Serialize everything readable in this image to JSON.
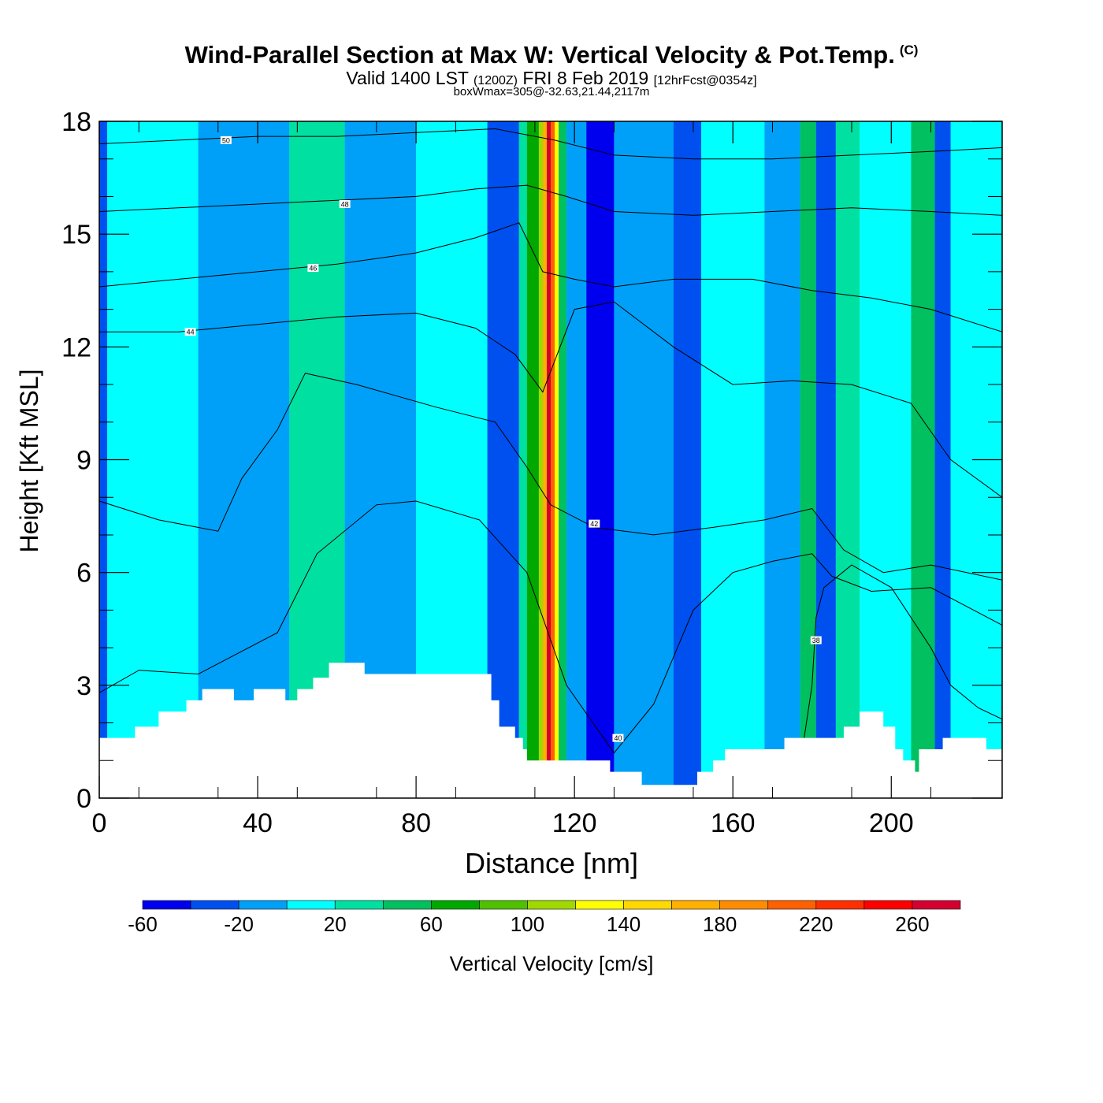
{
  "header": {
    "title": "Wind-Parallel Section at Max W: Vertical Velocity & Pot.Temp.",
    "copyright": "(C)",
    "valid_prefix": "Valid 1400 LST",
    "valid_z": "(1200Z)",
    "valid_date": "FRI 8 Feb 2019",
    "valid_fcst": "[12hrFcst@0354z]",
    "boxwmax": "boxWmax=305@-32.63,21.44,2117m"
  },
  "chart_data": {
    "type": "heatmap",
    "title": "Wind-Parallel Section at Max W: Vertical Velocity & Pot.Temp.",
    "xlabel": "Distance [nm]",
    "ylabel": "Height [Kft MSL]",
    "xlim": [
      0,
      228
    ],
    "ylim": [
      0,
      18
    ],
    "x_ticks": [
      "0",
      "40",
      "80",
      "120",
      "160",
      "200"
    ],
    "y_ticks": [
      "0",
      "3",
      "6",
      "9",
      "12",
      "15",
      "18"
    ],
    "colorbar": {
      "label": "Vertical Velocity [cm/s]",
      "levels": [
        -60,
        -40,
        -20,
        0,
        20,
        40,
        60,
        80,
        100,
        120,
        140,
        160,
        180,
        200,
        220,
        240,
        260,
        280
      ],
      "tick_labels": [
        "-60",
        "-20",
        "20",
        "60",
        "100",
        "140",
        "180",
        "220",
        "260"
      ],
      "colors": [
        "#0000ee",
        "#0050f0",
        "#00a0f8",
        "#00ffff",
        "#00e0a0",
        "#00c060",
        "#00a800",
        "#50c000",
        "#a0d800",
        "#ffff00",
        "#ffd800",
        "#ffb000",
        "#ff8c00",
        "#ff6000",
        "#ff3000",
        "#ff0000",
        "#d40030"
      ]
    },
    "velocity_columns": [
      {
        "x": [
          0,
          2
        ],
        "v": -30
      },
      {
        "x": [
          2,
          25
        ],
        "v": 10
      },
      {
        "x": [
          25,
          48
        ],
        "v": -10
      },
      {
        "x": [
          48,
          62
        ],
        "v": 20
      },
      {
        "x": [
          62,
          80
        ],
        "v": -10
      },
      {
        "x": [
          80,
          98
        ],
        "v": 10
      },
      {
        "x": [
          98,
          106
        ],
        "v": -30
      },
      {
        "x": [
          106,
          108
        ],
        "v": 20
      },
      {
        "x": [
          108,
          111
        ],
        "v": 60
      },
      {
        "x": [
          111,
          112
        ],
        "v": 100
      },
      {
        "x": [
          112,
          113
        ],
        "v": 160
      },
      {
        "x": [
          113,
          114
        ],
        "v": 260
      },
      {
        "x": [
          114,
          115
        ],
        "v": 200
      },
      {
        "x": [
          115,
          116
        ],
        "v": 120
      },
      {
        "x": [
          116,
          118
        ],
        "v": 40
      },
      {
        "x": [
          118,
          123
        ],
        "v": -20
      },
      {
        "x": [
          123,
          130
        ],
        "v": -50
      },
      {
        "x": [
          130,
          145
        ],
        "v": -10
      },
      {
        "x": [
          145,
          152
        ],
        "v": -30
      },
      {
        "x": [
          152,
          168
        ],
        "v": 10
      },
      {
        "x": [
          168,
          177
        ],
        "v": -10
      },
      {
        "x": [
          177,
          181
        ],
        "v": 40
      },
      {
        "x": [
          181,
          186
        ],
        "v": -30
      },
      {
        "x": [
          186,
          192
        ],
        "v": 30
      },
      {
        "x": [
          192,
          205
        ],
        "v": 0
      },
      {
        "x": [
          205,
          211
        ],
        "v": 40
      },
      {
        "x": [
          211,
          215
        ],
        "v": -40
      },
      {
        "x": [
          215,
          228
        ],
        "v": 10
      }
    ],
    "terrain_kft": [
      {
        "x": 0,
        "h": 1.6
      },
      {
        "x": 9,
        "h": 1.9
      },
      {
        "x": 15,
        "h": 2.3
      },
      {
        "x": 22,
        "h": 2.6
      },
      {
        "x": 26,
        "h": 2.9
      },
      {
        "x": 34,
        "h": 2.6
      },
      {
        "x": 39,
        "h": 2.9
      },
      {
        "x": 47,
        "h": 2.6
      },
      {
        "x": 50,
        "h": 2.9
      },
      {
        "x": 54,
        "h": 3.2
      },
      {
        "x": 58,
        "h": 3.6
      },
      {
        "x": 67,
        "h": 3.3
      },
      {
        "x": 99,
        "h": 2.6
      },
      {
        "x": 101,
        "h": 1.9
      },
      {
        "x": 105,
        "h": 1.6
      },
      {
        "x": 107,
        "h": 1.3
      },
      {
        "x": 108,
        "h": 1.0
      },
      {
        "x": 129,
        "h": 0.7
      },
      {
        "x": 137,
        "h": 0.35
      },
      {
        "x": 149,
        "h": 0.35
      },
      {
        "x": 151,
        "h": 0.7
      },
      {
        "x": 155,
        "h": 1.0
      },
      {
        "x": 158,
        "h": 1.3
      },
      {
        "x": 173,
        "h": 1.6
      },
      {
        "x": 188,
        "h": 1.9
      },
      {
        "x": 192,
        "h": 2.3
      },
      {
        "x": 198,
        "h": 1.9
      },
      {
        "x": 201,
        "h": 1.3
      },
      {
        "x": 203,
        "h": 1.0
      },
      {
        "x": 206,
        "h": 0.7
      },
      {
        "x": 207,
        "h": 1.3
      },
      {
        "x": 213,
        "h": 1.6
      },
      {
        "x": 224,
        "h": 1.3
      },
      {
        "x": 228,
        "h": 1.3
      }
    ],
    "isentropes": [
      {
        "label": "38",
        "label_at": [
          181,
          4.2
        ],
        "pts": [
          [
            178,
            1.6
          ],
          [
            180,
            3.0
          ],
          [
            181,
            4.8
          ],
          [
            183,
            5.6
          ],
          [
            190,
            6.2
          ],
          [
            200,
            5.6
          ],
          [
            210,
            4.0
          ],
          [
            215,
            3.0
          ],
          [
            222,
            2.4
          ],
          [
            228,
            2.1
          ]
        ]
      },
      {
        "label": "40",
        "label_at": [
          131,
          1.6
        ],
        "pts": [
          [
            0,
            2.8
          ],
          [
            10,
            3.4
          ],
          [
            25,
            3.3
          ],
          [
            45,
            4.4
          ],
          [
            55,
            6.5
          ],
          [
            70,
            7.8
          ],
          [
            80,
            7.9
          ],
          [
            96,
            7.4
          ],
          [
            108,
            6.0
          ],
          [
            113,
            4.5
          ],
          [
            118,
            3.0
          ],
          [
            130,
            1.2
          ],
          [
            140,
            2.5
          ],
          [
            150,
            5.0
          ],
          [
            160,
            6.0
          ],
          [
            170,
            6.3
          ],
          [
            180,
            6.5
          ],
          [
            185,
            5.9
          ],
          [
            195,
            5.5
          ],
          [
            210,
            5.6
          ],
          [
            228,
            4.6
          ]
        ]
      },
      {
        "label": "42",
        "label_at": [
          125,
          7.3
        ],
        "pts": [
          [
            0,
            7.9
          ],
          [
            15,
            7.4
          ],
          [
            30,
            7.1
          ],
          [
            36,
            8.5
          ],
          [
            45,
            9.8
          ],
          [
            52,
            11.3
          ],
          [
            65,
            11.0
          ],
          [
            85,
            10.4
          ],
          [
            100,
            10.0
          ],
          [
            108,
            8.8
          ],
          [
            114,
            7.8
          ],
          [
            125,
            7.2
          ],
          [
            140,
            7.0
          ],
          [
            155,
            7.2
          ],
          [
            168,
            7.4
          ],
          [
            180,
            7.7
          ],
          [
            188,
            6.6
          ],
          [
            198,
            6.0
          ],
          [
            210,
            6.2
          ],
          [
            228,
            5.8
          ]
        ]
      },
      {
        "label": "44",
        "label_at": [
          23,
          12.4
        ],
        "pts": [
          [
            0,
            12.4
          ],
          [
            20,
            12.4
          ],
          [
            40,
            12.6
          ],
          [
            60,
            12.8
          ],
          [
            80,
            12.9
          ],
          [
            95,
            12.5
          ],
          [
            105,
            11.8
          ],
          [
            112,
            10.8
          ],
          [
            120,
            13.0
          ],
          [
            130,
            13.2
          ],
          [
            145,
            12.0
          ],
          [
            160,
            11.0
          ],
          [
            175,
            11.1
          ],
          [
            190,
            11.0
          ],
          [
            205,
            10.5
          ],
          [
            215,
            9.0
          ],
          [
            228,
            8.0
          ]
        ]
      },
      {
        "label": "46",
        "label_at": [
          54,
          14.1
        ],
        "pts": [
          [
            0,
            13.6
          ],
          [
            20,
            13.8
          ],
          [
            40,
            14.0
          ],
          [
            60,
            14.2
          ],
          [
            80,
            14.5
          ],
          [
            95,
            14.9
          ],
          [
            106,
            15.3
          ],
          [
            112,
            14.0
          ],
          [
            120,
            13.8
          ],
          [
            130,
            13.6
          ],
          [
            145,
            13.8
          ],
          [
            165,
            13.8
          ],
          [
            180,
            13.5
          ],
          [
            195,
            13.3
          ],
          [
            210,
            13.0
          ],
          [
            228,
            12.4
          ]
        ]
      },
      {
        "label": "48",
        "label_at": [
          62,
          15.8
        ],
        "pts": [
          [
            0,
            15.6
          ],
          [
            20,
            15.7
          ],
          [
            40,
            15.8
          ],
          [
            60,
            15.9
          ],
          [
            80,
            16.0
          ],
          [
            95,
            16.2
          ],
          [
            108,
            16.3
          ],
          [
            118,
            16.0
          ],
          [
            130,
            15.6
          ],
          [
            150,
            15.5
          ],
          [
            170,
            15.6
          ],
          [
            190,
            15.7
          ],
          [
            210,
            15.6
          ],
          [
            228,
            15.5
          ]
        ]
      },
      {
        "label": "50",
        "label_at": [
          32,
          17.5
        ],
        "pts": [
          [
            0,
            17.4
          ],
          [
            20,
            17.5
          ],
          [
            40,
            17.6
          ],
          [
            60,
            17.6
          ],
          [
            80,
            17.7
          ],
          [
            100,
            17.8
          ],
          [
            115,
            17.5
          ],
          [
            130,
            17.1
          ],
          [
            150,
            17.0
          ],
          [
            170,
            17.0
          ],
          [
            190,
            17.1
          ],
          [
            210,
            17.2
          ],
          [
            228,
            17.3
          ]
        ]
      }
    ]
  }
}
